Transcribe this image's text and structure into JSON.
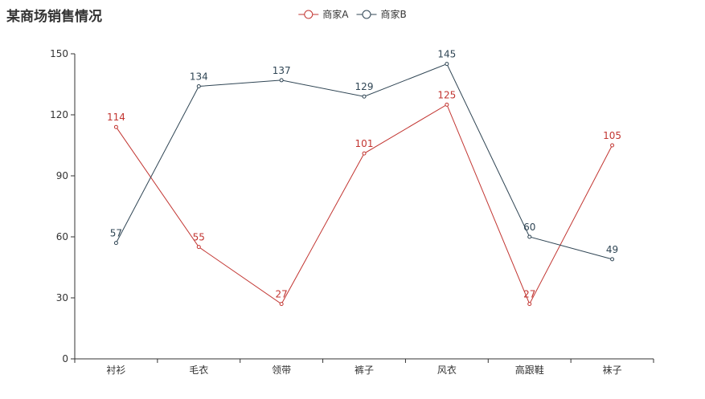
{
  "chart_data": {
    "type": "line",
    "title": "某商场销售情况",
    "categories": [
      "衬衫",
      "毛衣",
      "领带",
      "裤子",
      "风衣",
      "高跟鞋",
      "袜子"
    ],
    "series": [
      {
        "name": "商家A",
        "color": "#c23531",
        "values": [
          114,
          55,
          27,
          101,
          125,
          27,
          105
        ]
      },
      {
        "name": "商家B",
        "color": "#2f4554",
        "values": [
          57,
          134,
          137,
          129,
          145,
          60,
          49
        ]
      }
    ],
    "ylim": [
      0,
      150
    ],
    "yticks": [
      0,
      30,
      60,
      90,
      120,
      150
    ],
    "xlabel": "",
    "ylabel": "",
    "legend_position": "top-center",
    "grid": false,
    "show_data_labels": true
  }
}
